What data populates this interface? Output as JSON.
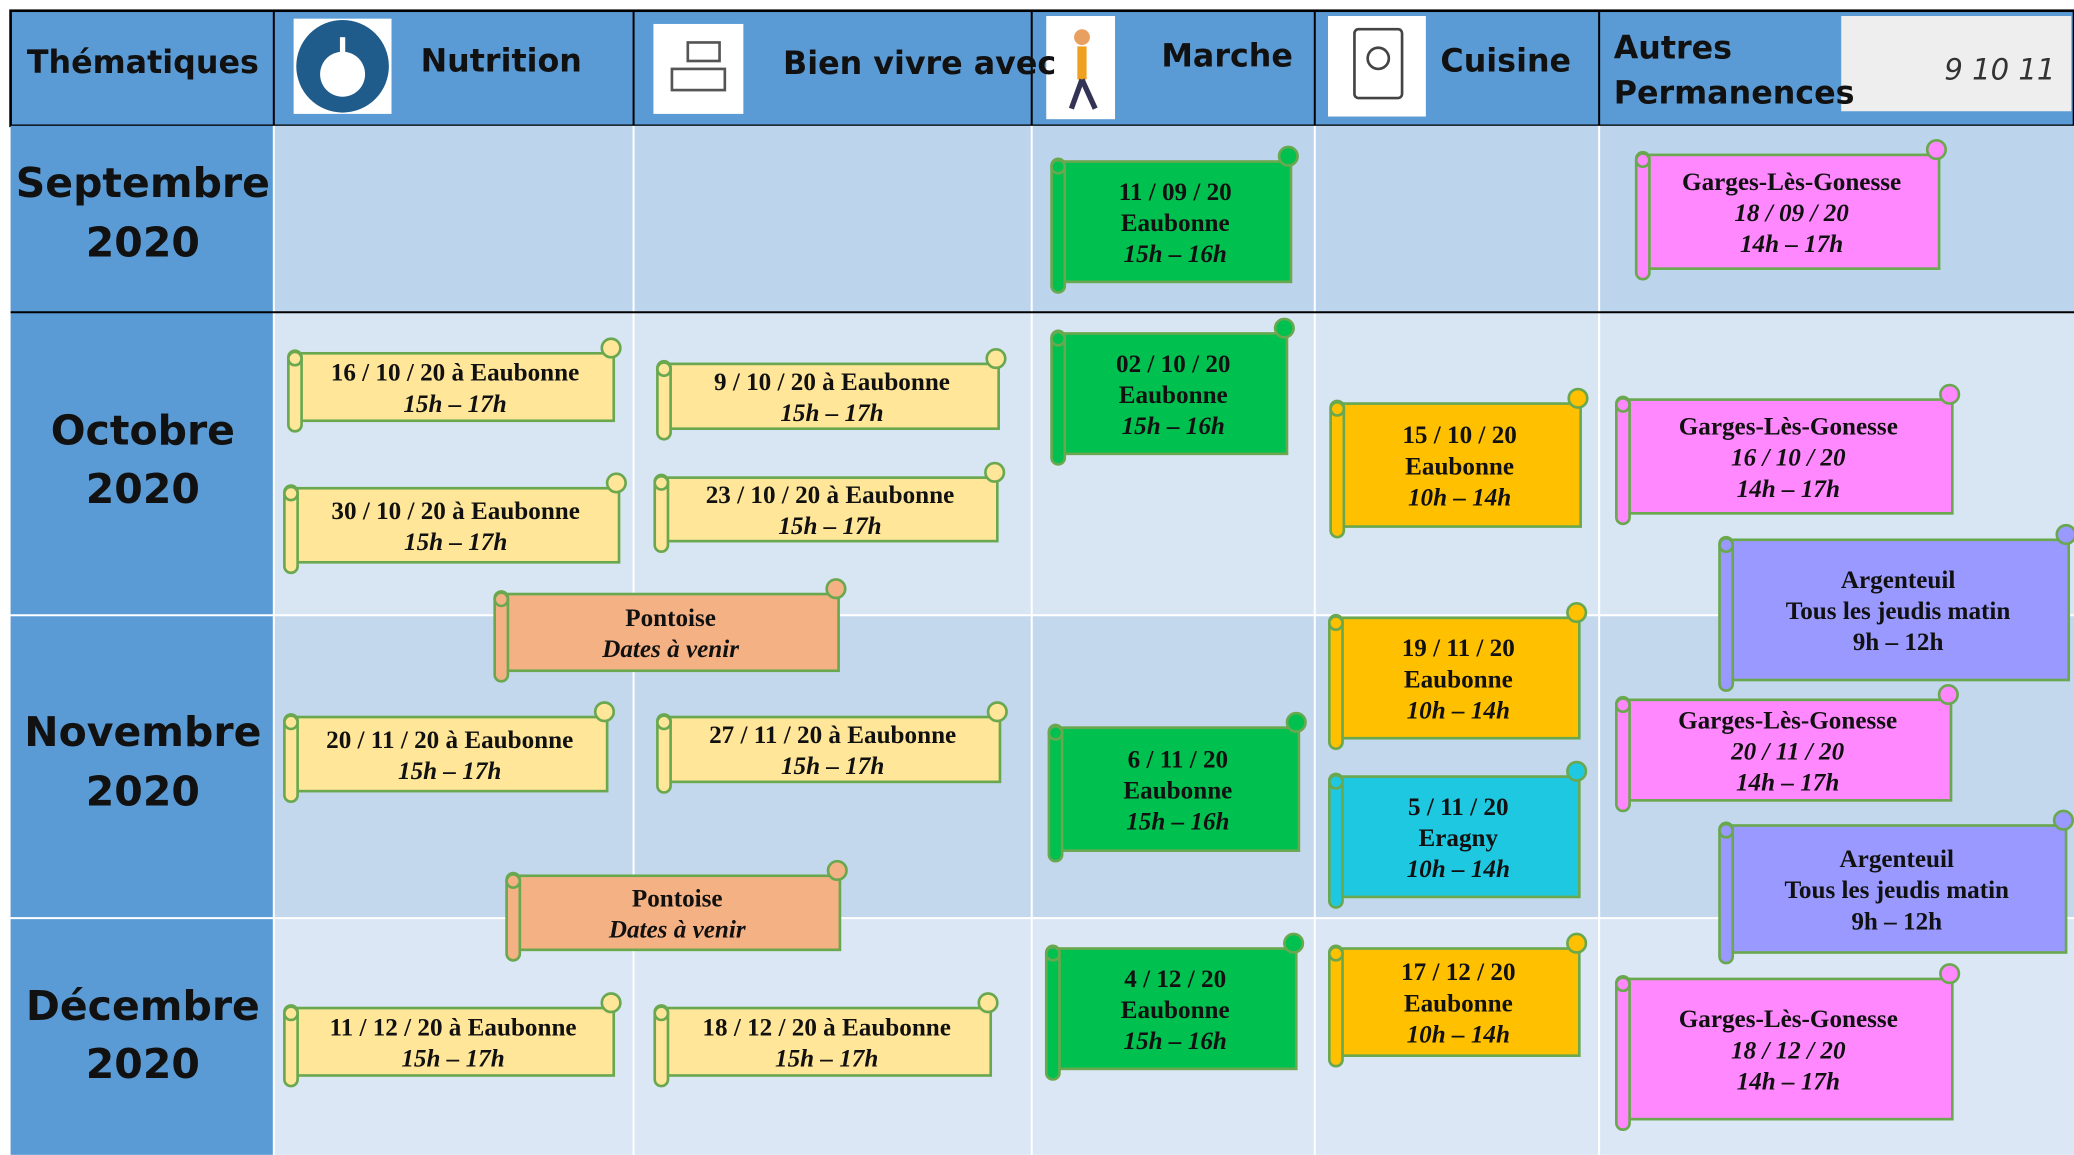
{
  "header": {
    "columns": [
      [
        "Thématiques"
      ],
      [
        "Nutrition"
      ],
      [
        "Bien vivre avec"
      ],
      [
        "Marche"
      ],
      [
        "Cuisine"
      ],
      [
        "Autres",
        "Permanences"
      ]
    ]
  },
  "rows": [
    [
      "Septembre",
      "2020"
    ],
    [
      "Octobre",
      "2020"
    ],
    [
      "Novembre",
      "2020"
    ],
    [
      "Décembre",
      "2020"
    ]
  ],
  "events": [
    {
      "color": "#00c04f",
      "lines": [
        {
          "text": "11 / 09 / 20",
          "italic": false
        },
        {
          "text": "Eaubonne",
          "italic": false
        },
        {
          "text": "15h – 16h",
          "italic": true
        }
      ]
    },
    {
      "color": "#ff88ff",
      "lines": [
        {
          "text": "Garges-Lès-Gonesse",
          "italic": false
        },
        {
          "text": "18 / 09 / 20",
          "italic": true
        },
        {
          "text": "14h – 17h",
          "italic": true
        }
      ]
    },
    {
      "color": "#ffe699",
      "lines": [
        {
          "text": "16 / 10 / 20 à Eaubonne",
          "italic": false
        },
        {
          "text": "15h – 17h",
          "italic": true
        }
      ]
    },
    {
      "color": "#ffe699",
      "lines": [
        {
          "text": "30 / 10 / 20 à Eaubonne",
          "italic": false
        },
        {
          "text": "15h – 17h",
          "italic": true
        }
      ]
    },
    {
      "color": "#ffe699",
      "lines": [
        {
          "text": "9 / 10 / 20 à Eaubonne",
          "italic": false
        },
        {
          "text": "15h – 17h",
          "italic": true
        }
      ]
    },
    {
      "color": "#ffe699",
      "lines": [
        {
          "text": "23 / 10 / 20 à Eaubonne",
          "italic": false
        },
        {
          "text": "15h – 17h",
          "italic": true
        }
      ]
    },
    {
      "color": "#00c04f",
      "lines": [
        {
          "text": "02 / 10 / 20",
          "italic": false
        },
        {
          "text": "Eaubonne",
          "italic": false
        },
        {
          "text": "15h – 16h",
          "italic": true
        }
      ]
    },
    {
      "color": "#ffc000",
      "lines": [
        {
          "text": "15 / 10 / 20",
          "italic": false
        },
        {
          "text": "Eaubonne",
          "italic": false
        },
        {
          "text": "10h – 14h",
          "italic": true
        }
      ]
    },
    {
      "color": "#ff88ff",
      "lines": [
        {
          "text": "Garges-Lès-Gonesse",
          "italic": false
        },
        {
          "text": "16 / 10 / 20",
          "italic": true
        },
        {
          "text": "14h – 17h",
          "italic": true
        }
      ]
    },
    {
      "color": "#9999ff",
      "lines": [
        {
          "text": "Argenteuil",
          "italic": false
        },
        {
          "text": "Tous les jeudis matin",
          "italic": false
        },
        {
          "text": "9h – 12h",
          "italic": false
        }
      ]
    },
    {
      "color": "#f4b183",
      "lines": [
        {
          "text": "Pontoise",
          "italic": false
        },
        {
          "text": "Dates à venir",
          "italic": true
        }
      ]
    },
    {
      "color": "#ffc000",
      "lines": [
        {
          "text": "19 / 11 / 20",
          "italic": false
        },
        {
          "text": "Eaubonne",
          "italic": false
        },
        {
          "text": "10h – 14h",
          "italic": true
        }
      ]
    },
    {
      "color": "#ffe699",
      "lines": [
        {
          "text": "20 / 11 / 20 à Eaubonne",
          "italic": false
        },
        {
          "text": "15h – 17h",
          "italic": true
        }
      ]
    },
    {
      "color": "#ffe699",
      "lines": [
        {
          "text": "27 / 11 / 20 à Eaubonne",
          "italic": false
        },
        {
          "text": "15h – 17h",
          "italic": true
        }
      ]
    },
    {
      "color": "#00c04f",
      "lines": [
        {
          "text": "6 / 11 / 20",
          "italic": false
        },
        {
          "text": "Eaubonne",
          "italic": false
        },
        {
          "text": "15h – 16h",
          "italic": true
        }
      ]
    },
    {
      "color": "#1ec8e0",
      "lines": [
        {
          "text": "5 / 11 / 20",
          "italic": false
        },
        {
          "text": "Eragny",
          "italic": false
        },
        {
          "text": "10h – 14h",
          "italic": true
        }
      ]
    },
    {
      "color": "#ff88ff",
      "lines": [
        {
          "text": "Garges-Lès-Gonesse",
          "italic": false
        },
        {
          "text": "20 / 11 / 20",
          "italic": true
        },
        {
          "text": "14h – 17h",
          "italic": true
        }
      ]
    },
    {
      "color": "#9999ff",
      "lines": [
        {
          "text": "Argenteuil",
          "italic": false
        },
        {
          "text": "Tous les jeudis matin",
          "italic": false
        },
        {
          "text": "9h – 12h",
          "italic": false
        }
      ]
    },
    {
      "color": "#f4b183",
      "lines": [
        {
          "text": "Pontoise",
          "italic": false
        },
        {
          "text": "Dates à venir",
          "italic": true
        }
      ]
    },
    {
      "color": "#00c04f",
      "lines": [
        {
          "text": "4 / 12 / 20",
          "italic": false
        },
        {
          "text": "Eaubonne",
          "italic": false
        },
        {
          "text": "15h – 16h",
          "italic": true
        }
      ]
    },
    {
      "color": "#ffc000",
      "lines": [
        {
          "text": "17 / 12 / 20",
          "italic": false
        },
        {
          "text": "Eaubonne",
          "italic": false
        },
        {
          "text": "10h – 14h",
          "italic": true
        }
      ]
    },
    {
      "color": "#ffe699",
      "lines": [
        {
          "text": "11 / 12 / 20 à Eaubonne",
          "italic": false
        },
        {
          "text": "15h – 17h",
          "italic": true
        }
      ]
    },
    {
      "color": "#ffe699",
      "lines": [
        {
          "text": "18 / 12 / 20 à Eaubonne",
          "italic": false
        },
        {
          "text": "15h – 17h",
          "italic": true
        }
      ]
    },
    {
      "color": "#ff88ff",
      "lines": [
        {
          "text": "Garges-Lès-Gonesse",
          "italic": false
        },
        {
          "text": "18 / 12 / 20",
          "italic": true
        },
        {
          "text": "14h – 17h",
          "italic": true
        }
      ]
    }
  ]
}
